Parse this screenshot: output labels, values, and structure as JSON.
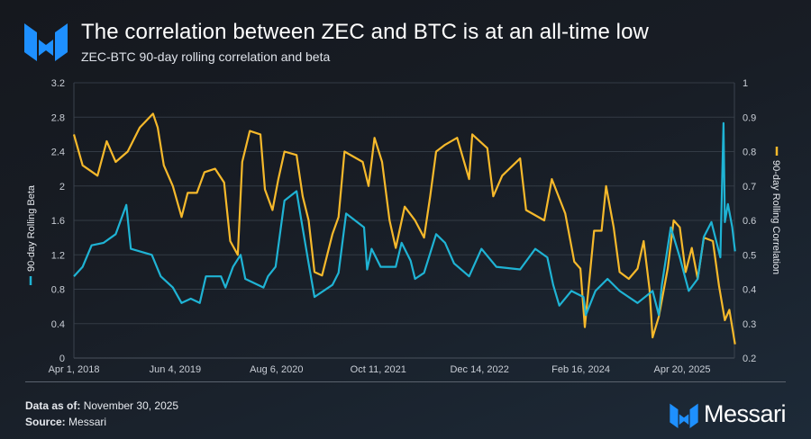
{
  "header": {
    "title": "The correlation between ZEC and BTC is at an all-time low",
    "subtitle": "ZEC-BTC 90-day rolling correlation and beta"
  },
  "footer": {
    "data_as_of_label": "Data as of:",
    "data_as_of_value": "November 30, 2025",
    "source_label": "Source:",
    "source_value": "Messari",
    "brand": "Messari"
  },
  "colors": {
    "beta": "#1fb3d4",
    "correlation": "#f6b92b",
    "brand_blue": "#1e90ff",
    "grid": "#39414c"
  },
  "chart_data": {
    "type": "line",
    "grid": true,
    "legend": "axis-labels",
    "x_ticks": [
      "Apr 1, 2018",
      "Jun 4, 2019",
      "Aug 6, 2020",
      "Oct 11, 2021",
      "Dec 14, 2022",
      "Feb 16, 2024",
      "Apr 20, 2025"
    ],
    "x_tick_dates": [
      "2018-04-01",
      "2019-06-04",
      "2020-08-06",
      "2021-10-11",
      "2022-12-14",
      "2024-02-16",
      "2025-04-20"
    ],
    "y_left": {
      "label": "90-day Rolling Beta",
      "range": [
        0,
        3.2
      ],
      "ticks": [
        "0",
        "0.4",
        "0.8",
        "1.2",
        "1.6",
        "2",
        "2.4",
        "2.8",
        "3.2"
      ]
    },
    "y_right": {
      "label": "90-day Rolling Correlation",
      "range": [
        0.2,
        1
      ],
      "ticks": [
        "0.2",
        "0.3",
        "0.4",
        "0.5",
        "0.6",
        "0.7",
        "0.8",
        "0.9",
        "1"
      ]
    },
    "series": [
      {
        "name": "90-day Rolling Beta",
        "axis": "left",
        "points": [
          [
            "2018-04-01",
            0.95
          ],
          [
            "2018-05-08",
            1.06
          ],
          [
            "2018-06-15",
            1.31
          ],
          [
            "2018-08-05",
            1.34
          ],
          [
            "2018-09-25",
            1.44
          ],
          [
            "2018-11-09",
            1.78
          ],
          [
            "2018-11-28",
            1.27
          ],
          [
            "2019-02-25",
            1.2
          ],
          [
            "2019-04-04",
            0.95
          ],
          [
            "2019-05-25",
            0.82
          ],
          [
            "2019-07-01",
            0.64
          ],
          [
            "2019-08-09",
            0.69
          ],
          [
            "2019-09-16",
            0.64
          ],
          [
            "2019-10-12",
            0.95
          ],
          [
            "2019-12-15",
            0.95
          ],
          [
            "2020-01-03",
            0.82
          ],
          [
            "2020-02-04",
            1.06
          ],
          [
            "2020-03-07",
            1.2
          ],
          [
            "2020-03-27",
            0.92
          ],
          [
            "2020-06-12",
            0.82
          ],
          [
            "2020-07-01",
            0.95
          ],
          [
            "2020-08-02",
            1.06
          ],
          [
            "2020-09-09",
            1.83
          ],
          [
            "2020-10-30",
            1.94
          ],
          [
            "2020-11-18",
            1.62
          ],
          [
            "2020-12-20",
            1.1
          ],
          [
            "2021-01-14",
            0.71
          ],
          [
            "2021-03-31",
            0.85
          ],
          [
            "2021-04-26",
            0.99
          ],
          [
            "2021-05-28",
            1.68
          ],
          [
            "2021-08-12",
            1.52
          ],
          [
            "2021-08-25",
            1.03
          ],
          [
            "2021-09-13",
            1.27
          ],
          [
            "2021-10-21",
            1.06
          ],
          [
            "2021-12-24",
            1.06
          ],
          [
            "2022-01-18",
            1.34
          ],
          [
            "2022-02-25",
            1.13
          ],
          [
            "2022-03-16",
            0.92
          ],
          [
            "2022-04-23",
            0.99
          ],
          [
            "2022-06-13",
            1.44
          ],
          [
            "2022-07-21",
            1.34
          ],
          [
            "2022-08-28",
            1.1
          ],
          [
            "2022-10-31",
            0.95
          ],
          [
            "2022-12-22",
            1.27
          ],
          [
            "2023-02-23",
            1.06
          ],
          [
            "2023-06-04",
            1.03
          ],
          [
            "2023-08-07",
            1.27
          ],
          [
            "2023-09-27",
            1.17
          ],
          [
            "2023-10-22",
            0.85
          ],
          [
            "2023-11-17",
            0.61
          ],
          [
            "2024-01-07",
            0.78
          ],
          [
            "2024-02-27",
            0.71
          ],
          [
            "2024-03-08",
            0.5
          ],
          [
            "2024-04-18",
            0.78
          ],
          [
            "2024-06-08",
            0.92
          ],
          [
            "2024-07-29",
            0.78
          ],
          [
            "2024-10-13",
            0.64
          ],
          [
            "2024-12-16",
            0.78
          ],
          [
            "2025-01-11",
            0.5
          ],
          [
            "2025-01-24",
            0.85
          ],
          [
            "2025-03-03",
            1.52
          ],
          [
            "2025-04-10",
            1.17
          ],
          [
            "2025-05-18",
            0.78
          ],
          [
            "2025-06-25",
            0.92
          ],
          [
            "2025-07-21",
            1.41
          ],
          [
            "2025-08-22",
            1.58
          ],
          [
            "2025-09-29",
            1.17
          ],
          [
            "2025-10-12",
            2.73
          ],
          [
            "2025-10-18",
            1.58
          ],
          [
            "2025-10-31",
            1.79
          ],
          [
            "2025-11-18",
            1.52
          ],
          [
            "2025-11-30",
            1.24
          ]
        ]
      },
      {
        "name": "90-day Rolling Correlation",
        "axis": "right",
        "points": [
          [
            "2018-04-01",
            0.85
          ],
          [
            "2018-05-08",
            0.76
          ],
          [
            "2018-07-10",
            0.73
          ],
          [
            "2018-08-18",
            0.83
          ],
          [
            "2018-09-25",
            0.77
          ],
          [
            "2018-11-15",
            0.8
          ],
          [
            "2019-01-05",
            0.87
          ],
          [
            "2019-03-02",
            0.91
          ],
          [
            "2019-03-22",
            0.87
          ],
          [
            "2019-04-17",
            0.76
          ],
          [
            "2019-05-25",
            0.7
          ],
          [
            "2019-07-01",
            0.61
          ],
          [
            "2019-07-27",
            0.68
          ],
          [
            "2019-09-04",
            0.68
          ],
          [
            "2019-10-06",
            0.74
          ],
          [
            "2019-11-20",
            0.75
          ],
          [
            "2019-12-28",
            0.71
          ],
          [
            "2020-01-23",
            0.54
          ],
          [
            "2020-02-24",
            0.5
          ],
          [
            "2020-03-14",
            0.77
          ],
          [
            "2020-04-15",
            0.86
          ],
          [
            "2020-05-30",
            0.85
          ],
          [
            "2020-06-18",
            0.69
          ],
          [
            "2020-07-20",
            0.63
          ],
          [
            "2020-08-14",
            0.72
          ],
          [
            "2020-09-09",
            0.8
          ],
          [
            "2020-10-30",
            0.79
          ],
          [
            "2020-11-25",
            0.67
          ],
          [
            "2020-12-20",
            0.6
          ],
          [
            "2021-01-14",
            0.45
          ],
          [
            "2021-02-15",
            0.44
          ],
          [
            "2021-03-31",
            0.56
          ],
          [
            "2021-04-26",
            0.61
          ],
          [
            "2021-05-21",
            0.8
          ],
          [
            "2021-08-06",
            0.77
          ],
          [
            "2021-08-31",
            0.7
          ],
          [
            "2021-09-25",
            0.84
          ],
          [
            "2021-10-27",
            0.77
          ],
          [
            "2021-11-28",
            0.6
          ],
          [
            "2021-12-24",
            0.52
          ],
          [
            "2022-01-31",
            0.64
          ],
          [
            "2022-03-16",
            0.6
          ],
          [
            "2022-04-23",
            0.55
          ],
          [
            "2022-05-19",
            0.67
          ],
          [
            "2022-06-13",
            0.8
          ],
          [
            "2022-07-21",
            0.82
          ],
          [
            "2022-09-10",
            0.84
          ],
          [
            "2022-10-31",
            0.72
          ],
          [
            "2022-11-13",
            0.85
          ],
          [
            "2023-01-16",
            0.81
          ],
          [
            "2023-02-10",
            0.67
          ],
          [
            "2023-03-20",
            0.73
          ],
          [
            "2023-06-04",
            0.78
          ],
          [
            "2023-06-29",
            0.63
          ],
          [
            "2023-09-14",
            0.6
          ],
          [
            "2023-10-16",
            0.72
          ],
          [
            "2023-12-12",
            0.62
          ],
          [
            "2024-01-19",
            0.48
          ],
          [
            "2024-02-14",
            0.46
          ],
          [
            "2024-03-04",
            0.29
          ],
          [
            "2024-04-12",
            0.57
          ],
          [
            "2024-05-14",
            0.57
          ],
          [
            "2024-06-02",
            0.7
          ],
          [
            "2024-07-04",
            0.58
          ],
          [
            "2024-07-29",
            0.45
          ],
          [
            "2024-09-06",
            0.43
          ],
          [
            "2024-10-13",
            0.46
          ],
          [
            "2024-11-08",
            0.54
          ],
          [
            "2024-12-03",
            0.4
          ],
          [
            "2024-12-16",
            0.26
          ],
          [
            "2025-01-11",
            0.32
          ],
          [
            "2025-02-18",
            0.46
          ],
          [
            "2025-03-15",
            0.6
          ],
          [
            "2025-04-10",
            0.58
          ],
          [
            "2025-05-05",
            0.45
          ],
          [
            "2025-05-31",
            0.52
          ],
          [
            "2025-06-25",
            0.43
          ],
          [
            "2025-07-21",
            0.55
          ],
          [
            "2025-08-28",
            0.54
          ],
          [
            "2025-09-23",
            0.41
          ],
          [
            "2025-10-18",
            0.31
          ],
          [
            "2025-11-06",
            0.34
          ],
          [
            "2025-11-30",
            0.24
          ]
        ]
      }
    ]
  }
}
